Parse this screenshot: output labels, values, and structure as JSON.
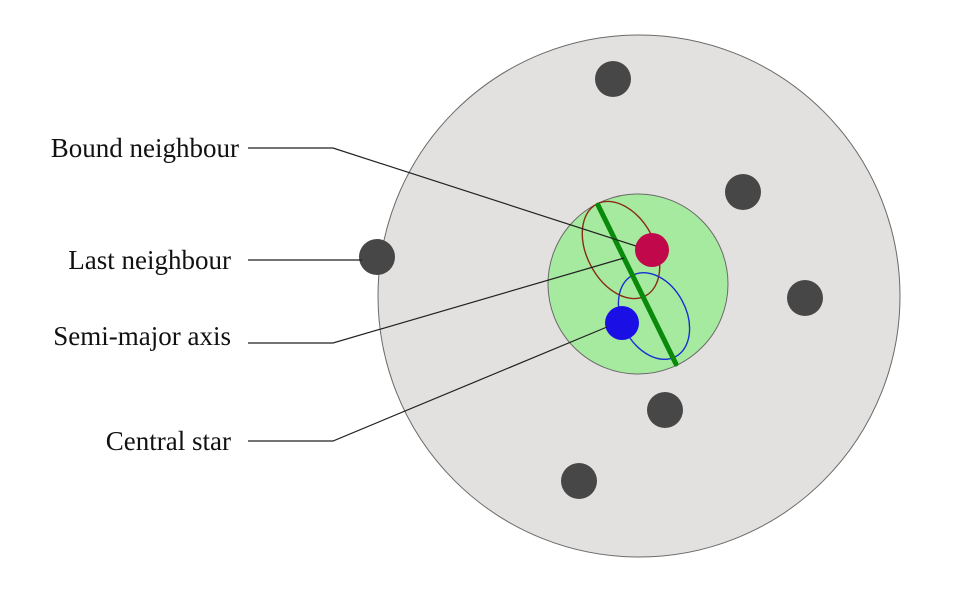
{
  "labels": {
    "bound_neighbour": "Bound neighbour",
    "last_neighbour": "Last neighbour",
    "semi_major_axis": "Semi-major axis",
    "central_star": "Central star"
  },
  "colors": {
    "outer_region": "#e3e1df",
    "inner_region": "#a6eaa0",
    "neighbour_star": "#474747",
    "central_star": "#1a10e6",
    "bound_neighbour": "#c0084a",
    "semi_major_axis": "#0a8a0a",
    "bound_orbit": "#8a2a10",
    "central_orbit": "#1530d0",
    "leader_line": "#222222"
  }
}
